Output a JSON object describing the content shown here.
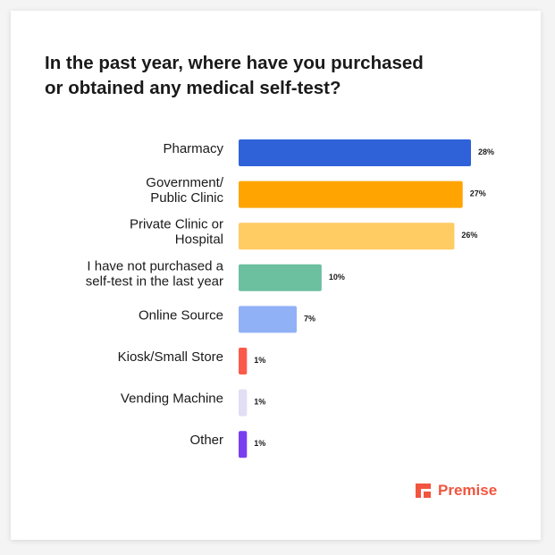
{
  "chart_data": {
    "type": "bar",
    "orientation": "horizontal",
    "title": "In the past year, where have you purchased\nor obtained any medical self-test?",
    "categories": [
      "Pharmacy",
      "Government/\nPublic Clinic",
      "Private Clinic or\nHospital",
      "I have not purchased a\nself-test in the last year",
      "Online Source",
      "Kiosk/Small Store",
      "Vending Machine",
      "Other"
    ],
    "values": [
      28,
      27,
      26,
      10,
      7,
      1,
      1,
      1
    ],
    "value_labels": [
      "28%",
      "27%",
      "26%",
      "10%",
      "7%",
      "1%",
      "1%",
      "1%"
    ],
    "colors": [
      "#2f62d9",
      "#ffa400",
      "#ffcb63",
      "#6cbf9f",
      "#91b1f7",
      "#fb5a4b",
      "#e2def5",
      "#7a3ef0"
    ]
  },
  "brand": "Premise"
}
